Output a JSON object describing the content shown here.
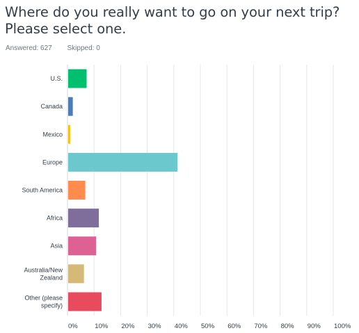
{
  "question": {
    "title": "Where do you really want to go on your next trip? Please select one."
  },
  "stats": {
    "answered": "Answered: 627",
    "skipped": "Skipped: 0"
  },
  "chart_data": {
    "type": "bar",
    "orientation": "horizontal",
    "categories": [
      "U.S.",
      "Canada",
      "Mexico",
      "Europe",
      "South America",
      "Africa",
      "Asia",
      "Australia/New Zealand",
      "Other (please specify)"
    ],
    "values": [
      7.2,
      2.0,
      1.0,
      41.4,
      6.7,
      11.8,
      10.8,
      6.2,
      12.8
    ],
    "colors": [
      "#00bf6f",
      "#507cb6",
      "#f9be00",
      "#6bc8cd",
      "#ff8b4f",
      "#7f6d9c",
      "#de6193",
      "#d4b978",
      "#e84b5d"
    ],
    "xlim": [
      0,
      100
    ],
    "x_tick_labels": [
      "0%",
      "10%",
      "20%",
      "30%",
      "40%",
      "50%",
      "60%",
      "70%",
      "80%",
      "90%",
      "100%"
    ],
    "grid": true
  }
}
